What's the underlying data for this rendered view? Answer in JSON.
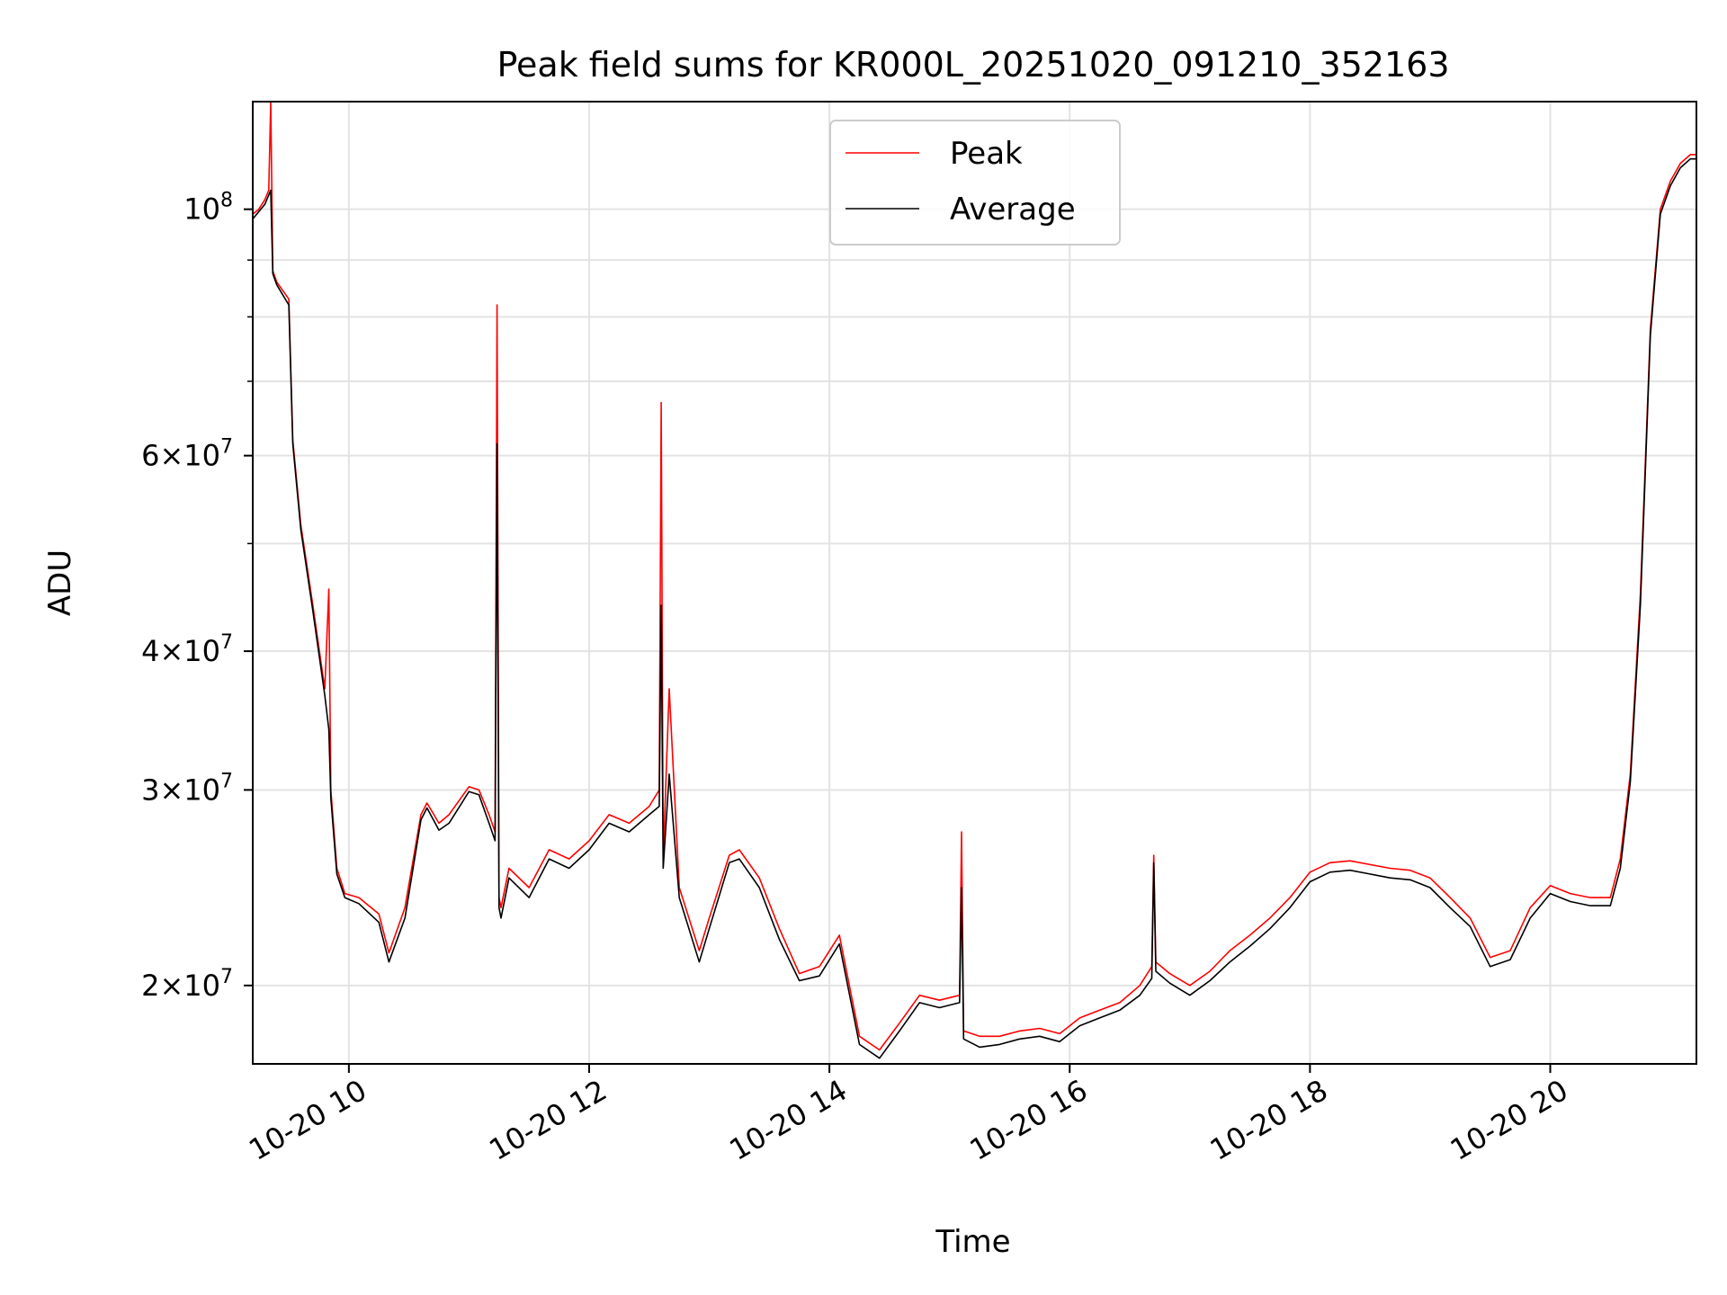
{
  "chart_data": {
    "type": "line",
    "title": "Peak field sums for KR000L_20251020_091210_352163",
    "xlabel": "Time",
    "ylabel": "ADU",
    "yscale": "log",
    "xlim": [
      "2025-10-20 09:12",
      "2025-10-20 21:13"
    ],
    "ylim": [
      17000000,
      125000000
    ],
    "grid": true,
    "legend_position": "top-center",
    "x_ticks": [
      {
        "time": "2025-10-20 10:00",
        "label": "10-20 10"
      },
      {
        "time": "2025-10-20 12:00",
        "label": "10-20 12"
      },
      {
        "time": "2025-10-20 14:00",
        "label": "10-20 14"
      },
      {
        "time": "2025-10-20 16:00",
        "label": "10-20 16"
      },
      {
        "time": "2025-10-20 18:00",
        "label": "10-20 18"
      },
      {
        "time": "2025-10-20 20:00",
        "label": "10-20 20"
      }
    ],
    "y_ticks": [
      {
        "value": 20000000,
        "mantissa": "2",
        "exp": "7"
      },
      {
        "value": 30000000,
        "mantissa": "3",
        "exp": "7"
      },
      {
        "value": 40000000,
        "mantissa": "4",
        "exp": "7"
      },
      {
        "value": 60000000,
        "mantissa": "6",
        "exp": "7"
      },
      {
        "value": 100000000,
        "mantissa": "",
        "exp": "8"
      }
    ],
    "y_minor_ticks": [
      50000000,
      70000000,
      80000000,
      90000000
    ],
    "series": [
      {
        "name": "Peak",
        "color": "#ff0000",
        "x": [
          "09:12",
          "09:15",
          "09:18",
          "09:20",
          "09:21",
          "09:22",
          "09:24",
          "09:30",
          "09:32",
          "09:36",
          "09:42",
          "09:48",
          "09:50",
          "09:51",
          "09:54",
          "09:58",
          "10:05",
          "10:15",
          "10:20",
          "10:28",
          "10:36",
          "10:39",
          "10:45",
          "10:50",
          "11:00",
          "11:05",
          "11:10",
          "11:13",
          "11:14",
          "11:15",
          "11:16",
          "11:20",
          "11:30",
          "11:40",
          "11:50",
          "12:00",
          "12:10",
          "12:20",
          "12:30",
          "12:35",
          "12:36",
          "12:37",
          "12:40",
          "12:45",
          "12:55",
          "13:00",
          "13:10",
          "13:15",
          "13:25",
          "13:35",
          "13:45",
          "13:55",
          "14:05",
          "14:15",
          "14:25",
          "14:35",
          "14:45",
          "14:55",
          "15:05",
          "15:06",
          "15:07",
          "15:15",
          "15:25",
          "15:35",
          "15:45",
          "15:55",
          "16:05",
          "16:15",
          "16:25",
          "16:35",
          "16:41",
          "16:42",
          "16:43",
          "16:50",
          "17:00",
          "17:10",
          "17:20",
          "17:30",
          "17:40",
          "17:50",
          "18:00",
          "18:10",
          "18:20",
          "18:30",
          "18:40",
          "18:50",
          "19:00",
          "19:10",
          "19:20",
          "19:30",
          "19:40",
          "19:50",
          "20:00",
          "20:10",
          "20:20",
          "20:30",
          "20:35",
          "20:40",
          "20:45",
          "20:50",
          "20:55",
          "21:00",
          "21:05",
          "21:10",
          "21:13"
        ],
        "y": [
          99000000,
          100000000,
          102000000,
          104000000,
          125000000,
          88000000,
          86000000,
          83000000,
          62000000,
          52000000,
          44000000,
          37000000,
          45500000,
          30000000,
          25500000,
          24200000,
          24000000,
          23200000,
          21400000,
          23500000,
          28500000,
          29200000,
          28000000,
          28500000,
          30200000,
          30000000,
          28500000,
          27500000,
          82000000,
          24000000,
          23500000,
          25500000,
          24500000,
          26500000,
          26000000,
          27000000,
          28500000,
          28000000,
          29000000,
          30000000,
          67000000,
          26000000,
          37000000,
          24500000,
          21500000,
          23000000,
          26200000,
          26500000,
          25000000,
          22500000,
          20500000,
          20800000,
          22200000,
          18000000,
          17500000,
          18500000,
          19600000,
          19400000,
          19600000,
          27500000,
          18200000,
          18000000,
          18000000,
          18200000,
          18300000,
          18100000,
          18700000,
          19000000,
          19300000,
          20000000,
          20800000,
          26200000,
          21000000,
          20500000,
          20000000,
          20600000,
          21500000,
          22200000,
          23000000,
          24000000,
          25300000,
          25800000,
          25900000,
          25700000,
          25500000,
          25400000,
          25000000,
          24000000,
          23000000,
          21200000,
          21500000,
          23500000,
          24600000,
          24200000,
          24000000,
          24000000,
          26000000,
          31000000,
          45000000,
          78000000,
          100000000,
          106000000,
          110000000,
          112000000,
          112000000
        ]
      },
      {
        "name": "Average",
        "color": "#000000",
        "x": [
          "09:12",
          "09:15",
          "09:18",
          "09:20",
          "09:21",
          "09:22",
          "09:24",
          "09:30",
          "09:32",
          "09:36",
          "09:42",
          "09:48",
          "09:50",
          "09:51",
          "09:54",
          "09:58",
          "10:05",
          "10:15",
          "10:20",
          "10:28",
          "10:36",
          "10:39",
          "10:45",
          "10:50",
          "11:00",
          "11:05",
          "11:10",
          "11:13",
          "11:14",
          "11:15",
          "11:16",
          "11:20",
          "11:30",
          "11:40",
          "11:50",
          "12:00",
          "12:10",
          "12:20",
          "12:30",
          "12:35",
          "12:36",
          "12:37",
          "12:40",
          "12:45",
          "12:55",
          "13:00",
          "13:10",
          "13:15",
          "13:25",
          "13:35",
          "13:45",
          "13:55",
          "14:05",
          "14:15",
          "14:25",
          "14:35",
          "14:45",
          "14:55",
          "15:05",
          "15:06",
          "15:07",
          "15:15",
          "15:25",
          "15:35",
          "15:45",
          "15:55",
          "16:05",
          "16:15",
          "16:25",
          "16:35",
          "16:41",
          "16:42",
          "16:43",
          "16:50",
          "17:00",
          "17:10",
          "17:20",
          "17:30",
          "17:40",
          "17:50",
          "18:00",
          "18:10",
          "18:20",
          "18:30",
          "18:40",
          "18:50",
          "19:00",
          "19:10",
          "19:20",
          "19:30",
          "19:40",
          "19:50",
          "20:00",
          "20:10",
          "20:20",
          "20:30",
          "20:35",
          "20:40",
          "20:45",
          "20:50",
          "20:55",
          "21:00",
          "21:05",
          "21:10",
          "21:13"
        ],
        "y": [
          98000000,
          99500000,
          101000000,
          103000000,
          104000000,
          87500000,
          85500000,
          82000000,
          61500000,
          51500000,
          43500000,
          36500000,
          34000000,
          29500000,
          25200000,
          24000000,
          23700000,
          22800000,
          21000000,
          23000000,
          28200000,
          28900000,
          27600000,
          28000000,
          29900000,
          29700000,
          28000000,
          27000000,
          61500000,
          23500000,
          23000000,
          25000000,
          24000000,
          26000000,
          25500000,
          26500000,
          28000000,
          27500000,
          28500000,
          29000000,
          44000000,
          25500000,
          31000000,
          24000000,
          21000000,
          22500000,
          25800000,
          26000000,
          24500000,
          22000000,
          20200000,
          20400000,
          21800000,
          17700000,
          17200000,
          18200000,
          19300000,
          19100000,
          19300000,
          24500000,
          17900000,
          17600000,
          17700000,
          17900000,
          18000000,
          17800000,
          18400000,
          18700000,
          19000000,
          19600000,
          20300000,
          25800000,
          20600000,
          20100000,
          19600000,
          20200000,
          21000000,
          21700000,
          22500000,
          23500000,
          24800000,
          25300000,
          25400000,
          25200000,
          25000000,
          24900000,
          24500000,
          23500000,
          22600000,
          20800000,
          21100000,
          23000000,
          24200000,
          23800000,
          23600000,
          23600000,
          25500000,
          30500000,
          44000000,
          77000000,
          99000000,
          105000000,
          109000000,
          111000000,
          111000000
        ]
      }
    ]
  }
}
